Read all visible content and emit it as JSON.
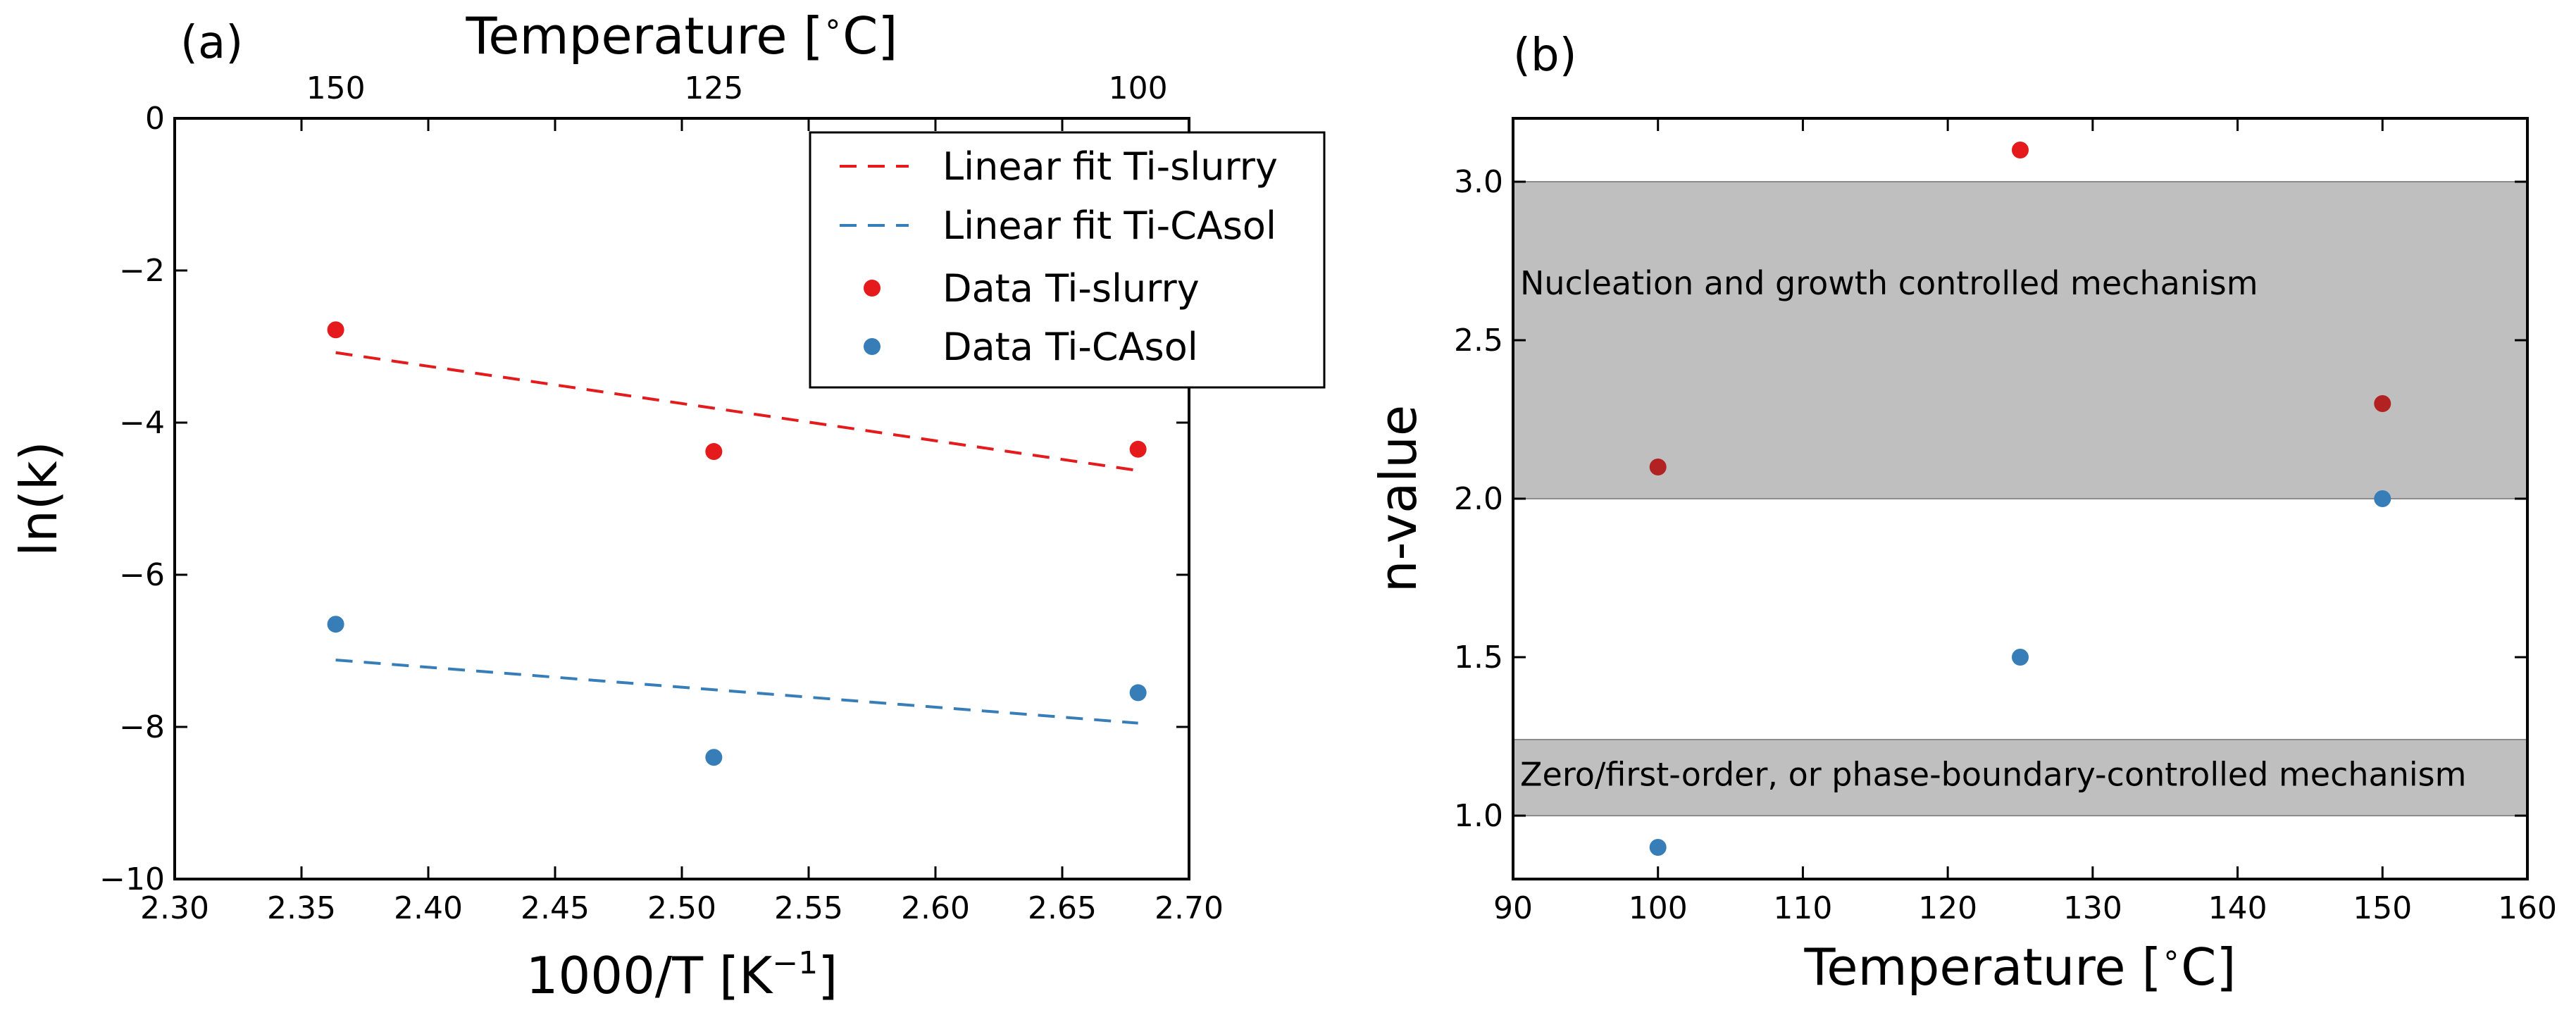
{
  "chart_data": [
    {
      "type": "scatter",
      "panel_label": "(a)",
      "xlabel": "1000/T [K",
      "xlabel_sup": "−1",
      "xlabel_end": "]",
      "ylabel": "ln(k)",
      "top_xlabel": "Temperature [",
      "top_xlabel_sup": "∘",
      "top_xlabel_end": "C]",
      "xlim": [
        2.3,
        2.7
      ],
      "ylim": [
        -10,
        0
      ],
      "xticks": [
        {
          "v": 2.3,
          "label": "2.30"
        },
        {
          "v": 2.35,
          "label": "2.35"
        },
        {
          "v": 2.4,
          "label": "2.40"
        },
        {
          "v": 2.45,
          "label": "2.45"
        },
        {
          "v": 2.5,
          "label": "2.50"
        },
        {
          "v": 2.55,
          "label": "2.55"
        },
        {
          "v": 2.6,
          "label": "2.60"
        },
        {
          "v": 2.65,
          "label": "2.65"
        },
        {
          "v": 2.7,
          "label": "2.70"
        }
      ],
      "yticks": [
        {
          "v": 0,
          "label": "0"
        },
        {
          "v": -2,
          "label": "−2"
        },
        {
          "v": -4,
          "label": "−4"
        },
        {
          "v": -6,
          "label": "−6"
        },
        {
          "v": -8,
          "label": "−8"
        },
        {
          "v": -10,
          "label": "−10"
        }
      ],
      "top_ticks": [
        {
          "v": 2.3635,
          "label": "150"
        },
        {
          "v": 2.5126,
          "label": "125"
        },
        {
          "v": 2.6799,
          "label": "100"
        }
      ],
      "legend_position": "top-right",
      "series": [
        {
          "name": "Linear fit Ti-slurry",
          "kind": "line",
          "color": "#e41a1c",
          "x": [
            2.3635,
            2.6799
          ],
          "y": [
            -3.08,
            -4.63
          ]
        },
        {
          "name": "Linear fit Ti-CAsol",
          "kind": "line",
          "color": "#377eb8",
          "x": [
            2.3635,
            2.6799
          ],
          "y": [
            -7.12,
            -7.95
          ]
        },
        {
          "name": "Data Ti-slurry",
          "kind": "points",
          "color": "#e41a1c",
          "x": [
            2.3635,
            2.5126,
            2.6799
          ],
          "y": [
            -2.78,
            -4.38,
            -4.35
          ]
        },
        {
          "name": "Data Ti-CAsol",
          "kind": "points",
          "color": "#377eb8",
          "x": [
            2.3635,
            2.5126,
            2.6799
          ],
          "y": [
            -6.65,
            -8.4,
            -7.55
          ]
        }
      ]
    },
    {
      "type": "scatter",
      "panel_label": "(b)",
      "xlabel": "Temperature [",
      "xlabel_sup": "∘",
      "xlabel_end": "C]",
      "ylabel": "n-value",
      "xlim": [
        90,
        160
      ],
      "ylim": [
        0.8,
        3.2
      ],
      "xticks": [
        {
          "v": 90,
          "label": "90"
        },
        {
          "v": 100,
          "label": "100"
        },
        {
          "v": 110,
          "label": "110"
        },
        {
          "v": 120,
          "label": "120"
        },
        {
          "v": 130,
          "label": "130"
        },
        {
          "v": 140,
          "label": "140"
        },
        {
          "v": 150,
          "label": "150"
        },
        {
          "v": 160,
          "label": "160"
        }
      ],
      "yticks": [
        {
          "v": 1.0,
          "label": "1.0"
        },
        {
          "v": 1.5,
          "label": "1.5"
        },
        {
          "v": 2.0,
          "label": "2.0"
        },
        {
          "v": 2.5,
          "label": "2.5"
        },
        {
          "v": 3.0,
          "label": "3.0"
        }
      ],
      "regions": [
        {
          "y0": 2.0,
          "y1": 3.0,
          "label": "Nucleation and growth controlled mechanism",
          "label_y": 2.68
        },
        {
          "y0": 1.0,
          "y1": 1.24,
          "label": "Zero/first-order, or phase-boundary-controlled mechanism",
          "label_y": 1.13
        }
      ],
      "series": [
        {
          "kind": "points",
          "color": "#e41a1c",
          "x": [
            100,
            125,
            150
          ],
          "y": [
            2.1,
            3.1,
            2.3
          ]
        },
        {
          "kind": "points",
          "color": "#377eb8",
          "x": [
            100,
            125,
            150
          ],
          "y": [
            0.9,
            1.5,
            2.0
          ]
        }
      ],
      "grid": false
    }
  ]
}
